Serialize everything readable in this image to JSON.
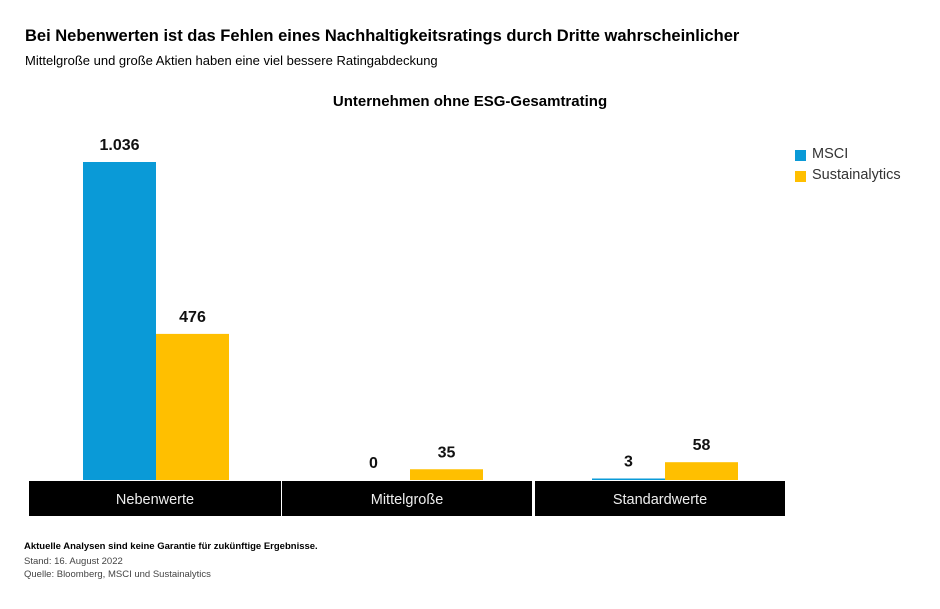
{
  "header": {
    "title": "Bei Nebenwerten ist das Fehlen eines Nachhaltigkeitsratings durch Dritte wahrscheinlicher",
    "subtitle": "Mittelgroße und große Aktien haben eine viel bessere Ratingabdeckung"
  },
  "chart_data": {
    "type": "bar",
    "title": "Unternehmen ohne ESG-Gesamtrating",
    "categories": [
      "Nebenwerte",
      "Mittelgroße",
      "Standardwerte"
    ],
    "series": [
      {
        "name": "MSCI",
        "values": [
          1036,
          0,
          3
        ],
        "labels": [
          "1.036",
          "0",
          "3"
        ],
        "color": "#0a9ad7"
      },
      {
        "name": "Sustainalytics",
        "values": [
          476,
          35,
          58
        ],
        "labels": [
          "476",
          "35",
          "58"
        ],
        "color": "#ffbf00"
      }
    ],
    "legend": "top-right",
    "grid": false
  },
  "footer": {
    "disclaimer": "Aktuelle Analysen sind keine Garantie für zukünftige Ergebnisse.",
    "date": "Stand: 16. August 2022",
    "source": "Quelle: Bloomberg, MSCI und Sustainalytics"
  }
}
